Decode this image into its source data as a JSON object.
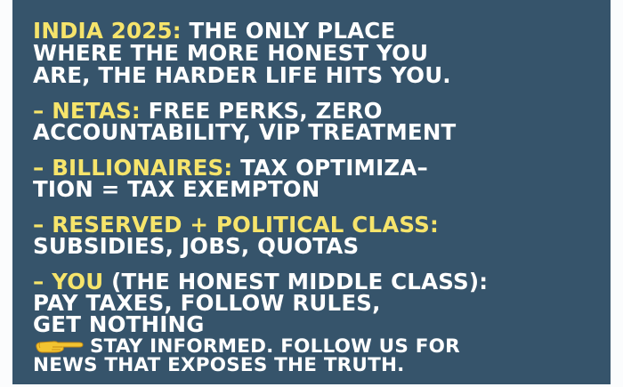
{
  "headline": {
    "highlight": "INDIA 2025:",
    "line1_rest": "THE ONLY PLACE",
    "line2": "WHERE THE MORE HONEST YOU",
    "line3": "ARE, THE HARDER LIFE HITS YOU."
  },
  "points": [
    {
      "bullet": "–",
      "highlight": "NETAS:",
      "line1_rest": "FREE PERKS, ZERO",
      "line2": "ACCOUNTABILITY, VIP TREATMENT"
    },
    {
      "bullet": "–",
      "highlight": "BILLIONAIRES:",
      "line1_rest": "TAX OPTIMIZA–",
      "line2": "TION = TAX EXEMPTON"
    },
    {
      "bullet": "–",
      "highlight": "RESERVED + POLITICAL CLASS:",
      "line1_rest": "",
      "line2": "SUBSIDIES, JOBS, QUOTAS"
    },
    {
      "bullet": "–",
      "highlight": "YOU",
      "line1_rest": "(THE HONEST MIDDLE CLASS):",
      "line2": "PAY TAXES, FOLLOW RULES,",
      "line3": "GET NOTHING"
    }
  ],
  "cta": {
    "icon": "pointing-hand-icon",
    "line1": "STAY INFORMED. FOLLOW US FOR",
    "line2": "NEWS THAT EXPOSES THE TRUTH."
  },
  "colors": {
    "background": "#36546b",
    "highlight": "#f6e46b",
    "text": "#ffffff",
    "frame": "#fbfcfd"
  }
}
